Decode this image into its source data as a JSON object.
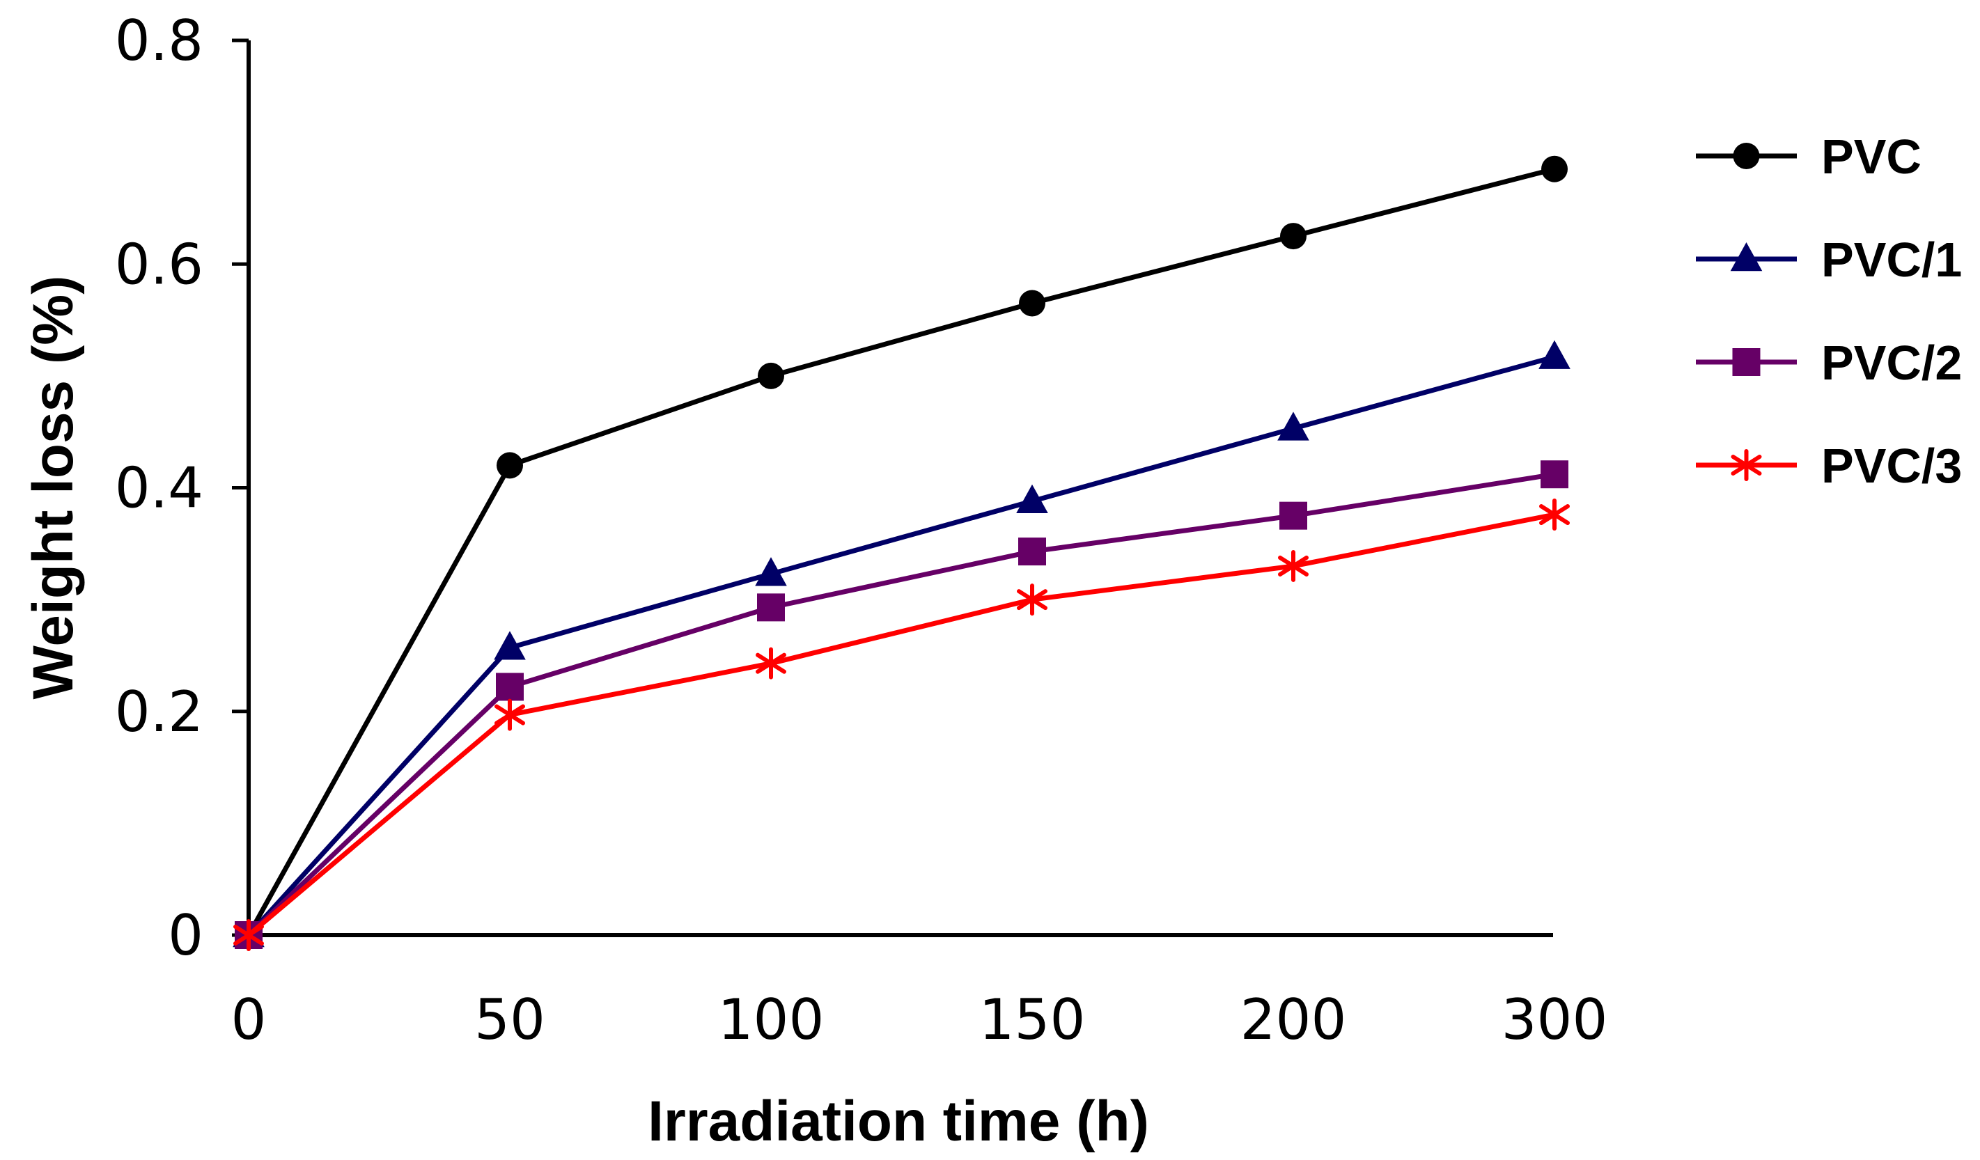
{
  "chart_data": {
    "type": "line",
    "title": "",
    "xlabel": "Irradiation time (h)",
    "ylabel": "Weight loss (%)",
    "categories": [
      "0",
      "50",
      "100",
      "150",
      "200",
      "300"
    ],
    "yticks": [
      "0",
      "0.2",
      "0.4",
      "0.6",
      "0.8"
    ],
    "ylim": [
      0,
      0.8
    ],
    "grid": false,
    "legend_position": "right",
    "series": [
      {
        "name": "PVC",
        "color": "#000000",
        "marker": "circle",
        "values": [
          0,
          0.42,
          0.5,
          0.565,
          0.625,
          0.685
        ]
      },
      {
        "name": "PVC/1",
        "color": "#000066",
        "marker": "triangle",
        "values": [
          0,
          0.257,
          0.323,
          0.388,
          0.453,
          0.517
        ]
      },
      {
        "name": "PVC/2",
        "color": "#660066",
        "marker": "square",
        "values": [
          0,
          0.222,
          0.293,
          0.343,
          0.375,
          0.412
        ]
      },
      {
        "name": "PVC/3",
        "color": "#ff0000",
        "marker": "asterisk",
        "values": [
          0,
          0.197,
          0.243,
          0.3,
          0.33,
          0.376
        ]
      }
    ]
  }
}
